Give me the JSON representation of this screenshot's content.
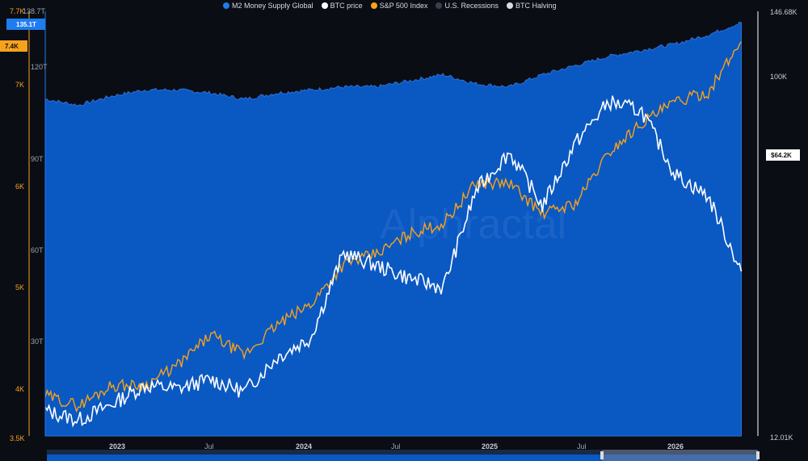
{
  "legend": [
    {
      "label": "M2 Money Supply Global",
      "color": "#1e7cf0"
    },
    {
      "label": "BTC price",
      "color": "#ffffff"
    },
    {
      "label": "S&P 500 Index",
      "color": "#f7a21b"
    },
    {
      "label": "U.S. Recessions",
      "color": "#3a3f4d"
    },
    {
      "label": "BTC Halving",
      "color": "#d9dbe2"
    }
  ],
  "axes": {
    "m2_ticks": [
      "138.7T",
      "120T",
      "90T",
      "60T",
      "30T"
    ],
    "spx_ticks": [
      "7.7K",
      "7K",
      "6K",
      "5K",
      "4K",
      "3.5K"
    ],
    "btc_ticks": [
      "146.68K",
      "100K",
      "12.01K"
    ],
    "x_ticks": [
      "2023",
      "Jul",
      "2024",
      "Jul",
      "2025",
      "Jul",
      "2026"
    ]
  },
  "tags": {
    "m2_current": "135.1T",
    "spx_current": "7.4K",
    "btc_current": "$64.2K"
  },
  "watermark": "Alphractal",
  "chart_data": {
    "type": "area",
    "x_range": [
      "2022-09",
      "2026-04"
    ],
    "series": [
      {
        "name": "M2 Money Supply Global",
        "axis": "left-outer",
        "unit": "T",
        "range": [
          0,
          138.7
        ],
        "x": [
          "2022-09",
          "2022-11",
          "2023-01",
          "2023-03",
          "2023-05",
          "2023-07",
          "2023-09",
          "2023-11",
          "2024-01",
          "2024-03",
          "2024-05",
          "2024-07",
          "2024-09",
          "2024-11",
          "2025-01",
          "2025-03",
          "2025-05",
          "2025-07",
          "2025-09",
          "2025-11",
          "2026-01",
          "2026-03"
        ],
        "values": [
          110,
          108,
          111,
          113,
          113,
          112,
          110,
          112,
          113,
          114,
          114,
          116,
          118,
          115,
          114,
          118,
          121,
          124,
          126,
          128,
          131,
          135
        ]
      },
      {
        "name": "BTC price",
        "axis": "right",
        "unit": "K",
        "range": [
          12.01,
          146.68
        ],
        "x": [
          "2022-09",
          "2022-11",
          "2023-01",
          "2023-03",
          "2023-05",
          "2023-07",
          "2023-09",
          "2023-11",
          "2024-01",
          "2024-03",
          "2024-05",
          "2024-07",
          "2024-09",
          "2024-11",
          "2025-01",
          "2025-03",
          "2025-05",
          "2025-07",
          "2025-09",
          "2025-11",
          "2026-01",
          "2026-03"
        ],
        "values": [
          20,
          17,
          22,
          28,
          27,
          30,
          26,
          37,
          43,
          70,
          66,
          62,
          59,
          90,
          102,
          85,
          105,
          118,
          115,
          95,
          88,
          64.2
        ]
      },
      {
        "name": "S&P 500 Index",
        "axis": "left-inner",
        "unit": "K",
        "range": [
          3.5,
          7.7
        ],
        "x": [
          "2022-09",
          "2022-11",
          "2023-01",
          "2023-03",
          "2023-05",
          "2023-07",
          "2023-09",
          "2023-11",
          "2024-01",
          "2024-03",
          "2024-05",
          "2024-07",
          "2024-09",
          "2024-11",
          "2025-01",
          "2025-03",
          "2025-05",
          "2025-07",
          "2025-09",
          "2025-11",
          "2026-01",
          "2026-03"
        ],
        "values": [
          3.9,
          3.8,
          4.0,
          4.0,
          4.2,
          4.5,
          4.3,
          4.6,
          4.8,
          5.2,
          5.3,
          5.5,
          5.6,
          6.0,
          6.0,
          5.7,
          5.8,
          6.3,
          6.6,
          6.8,
          6.9,
          7.4
        ]
      }
    ]
  }
}
